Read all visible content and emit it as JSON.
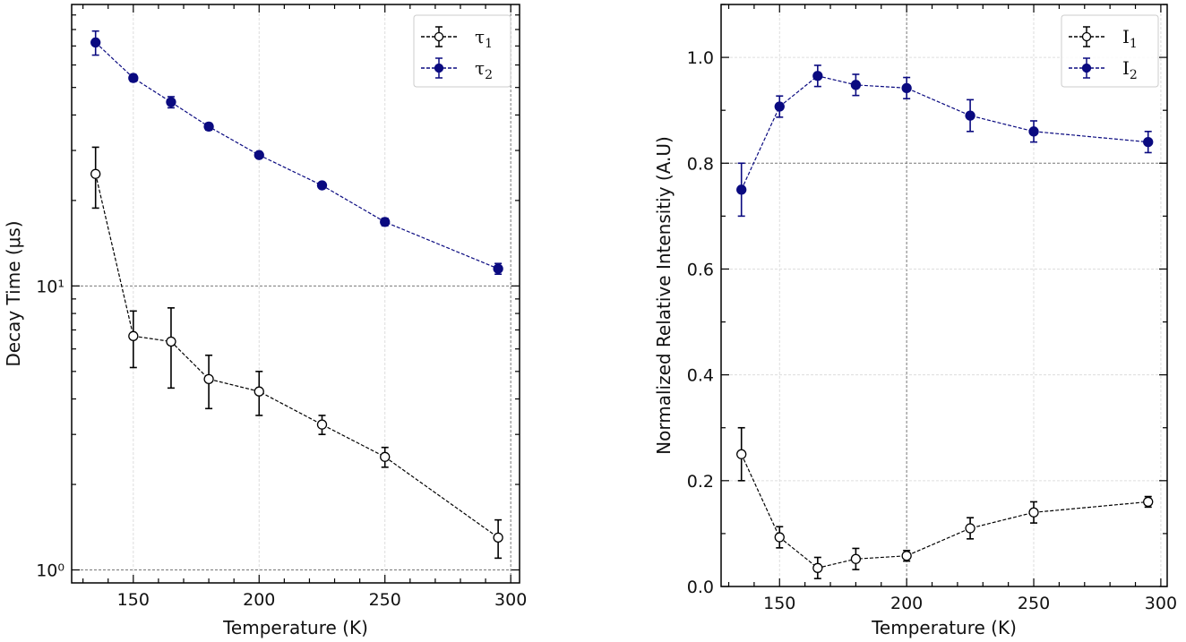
{
  "chart_data": [
    {
      "type": "line",
      "yscale": "log",
      "title": "",
      "xlabel": "Temperature (K)",
      "ylabel": "Decay Time (μs)",
      "xlim": [
        125.5,
        303.5
      ],
      "ylim": [
        0.9,
        98
      ],
      "xticks": [
        150,
        200,
        250,
        300
      ],
      "xtick_labels": [
        "150",
        "200",
        "250",
        "300"
      ],
      "yticks": [
        1,
        10
      ],
      "ytick_labels": [
        "10⁰",
        "10¹"
      ],
      "grid": true,
      "legend_position": "top-right",
      "x": [
        135,
        150,
        165,
        180,
        200,
        225,
        250,
        295
      ],
      "series": [
        {
          "name": "τ1",
          "label_main": "τ",
          "label_sub": "1",
          "color": "#000000",
          "marker": "open-circle",
          "values": [
            24.8,
            6.66,
            6.37,
            4.7,
            4.25,
            3.25,
            2.5,
            1.3
          ],
          "errors": [
            6,
            1.5,
            2,
            1,
            0.75,
            0.25,
            0.2,
            0.2
          ]
        },
        {
          "name": "τ2",
          "label_main": "τ",
          "label_sub": "2",
          "color": "#0a0a80",
          "marker": "filled-circle",
          "values": [
            72,
            54,
            44.4,
            36.4,
            28.9,
            22.6,
            16.8,
            11.5
          ],
          "errors": [
            7,
            1.5,
            2,
            1,
            0.6,
            0.5,
            0.5,
            0.5
          ]
        }
      ]
    },
    {
      "type": "line",
      "yscale": "linear",
      "title": "",
      "xlabel": "Temperature (K)",
      "ylabel": "Normalized Relative Intensitiy (A.U)",
      "xlim": [
        127,
        302.5
      ],
      "ylim": [
        0,
        1.1
      ],
      "xticks": [
        150,
        200,
        250,
        300
      ],
      "xtick_labels": [
        "150",
        "200",
        "250",
        "300"
      ],
      "yticks": [
        0,
        0.2,
        0.4,
        0.6,
        0.8,
        1.0
      ],
      "ytick_labels": [
        "0.0",
        "0.2",
        "0.4",
        "0.6",
        "0.8",
        "1.0"
      ],
      "grid": true,
      "legend_position": "top-right",
      "x": [
        135,
        150,
        165,
        180,
        200,
        225,
        250,
        295
      ],
      "series": [
        {
          "name": "I1",
          "label_main": "I",
          "label_sub": "1",
          "color": "#000000",
          "marker": "open-circle",
          "values": [
            0.25,
            0.093,
            0.035,
            0.052,
            0.058,
            0.11,
            0.14,
            0.16
          ],
          "errors": [
            0.05,
            0.02,
            0.02,
            0.02,
            0.01,
            0.02,
            0.02,
            0.01
          ]
        },
        {
          "name": "I2",
          "label_main": "I",
          "label_sub": "2",
          "color": "#0a0a80",
          "marker": "filled-circle",
          "values": [
            0.75,
            0.907,
            0.965,
            0.948,
            0.942,
            0.89,
            0.86,
            0.84
          ],
          "errors": [
            0.05,
            0.02,
            0.02,
            0.02,
            0.02,
            0.03,
            0.02,
            0.02
          ]
        }
      ]
    }
  ]
}
